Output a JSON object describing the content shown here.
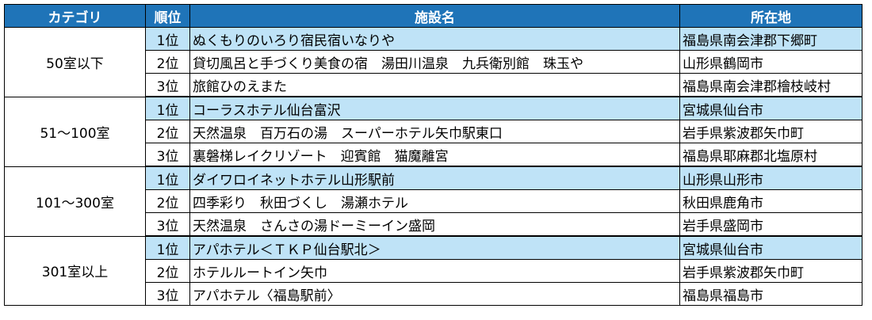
{
  "table": {
    "headers": {
      "category": "カテゴリ",
      "rank": "順位",
      "facility": "施設名",
      "location": "所在地"
    },
    "groups": [
      {
        "category": "50室以下",
        "rows": [
          {
            "rank": "1位",
            "facility": "ぬくもりのいろり宿民宿いなりや",
            "location": "福島県南会津郡下郷町"
          },
          {
            "rank": "2位",
            "facility": "貸切風呂と手づくり美食の宿　湯田川温泉　九兵衛別館　珠玉や",
            "location": "山形県鶴岡市"
          },
          {
            "rank": "3位",
            "facility": "旅館ひのえまた",
            "location": "福島県南会津郡檜枝岐村"
          }
        ]
      },
      {
        "category": "51～100室",
        "rows": [
          {
            "rank": "1位",
            "facility": "コーラスホテル仙台富沢",
            "location": "宮城県仙台市"
          },
          {
            "rank": "2位",
            "facility": "天然温泉　百万石の湯　スーパーホテル矢巾駅東口",
            "location": "岩手県紫波郡矢巾町"
          },
          {
            "rank": "3位",
            "facility": "裏磐梯レイクリゾート　迎賓館　猫魔離宮",
            "location": "福島県耶麻郡北塩原村"
          }
        ]
      },
      {
        "category": "101～300室",
        "rows": [
          {
            "rank": "1位",
            "facility": "ダイワロイネットホテル山形駅前",
            "location": "山形県山形市"
          },
          {
            "rank": "2位",
            "facility": "四季彩り　秋田づくし　湯瀬ホテル",
            "location": "秋田県鹿角市"
          },
          {
            "rank": "3位",
            "facility": "天然温泉　さんさの湯ドーミーイン盛岡",
            "location": "岩手県盛岡市"
          }
        ]
      },
      {
        "category": "301室以上",
        "rows": [
          {
            "rank": "1位",
            "facility": "アパホテル＜ＴＫＰ仙台駅北＞",
            "location": "宮城県仙台市"
          },
          {
            "rank": "2位",
            "facility": "ホテルルートイン矢巾",
            "location": "岩手県紫波郡矢巾町"
          },
          {
            "rank": "3位",
            "facility": "アパホテル〈福島駅前〉",
            "location": "福島県福島市"
          }
        ]
      }
    ]
  }
}
